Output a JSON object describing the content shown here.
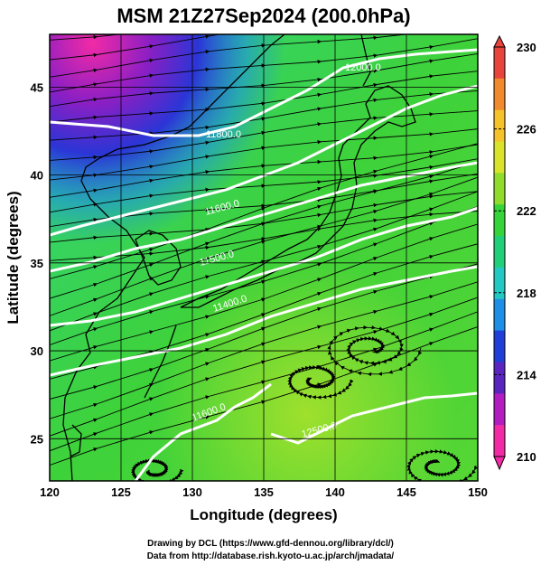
{
  "title": "MSM 21Z27Sep2024 (200.0hPa)",
  "xlabel": "Longitude (degrees)",
  "ylabel": "Latitude  (degrees)",
  "x_ticks": [
    "120",
    "125",
    "130",
    "135",
    "140",
    "145",
    "150"
  ],
  "y_ticks": [
    "25",
    "30",
    "35",
    "40",
    "45"
  ],
  "colorbar": {
    "ticks": [
      "230",
      "226",
      "222",
      "218",
      "214",
      "210"
    ],
    "colors": [
      "#e8443c",
      "#f08a2c",
      "#f6c22a",
      "#d8e32a",
      "#8fdc2c",
      "#35d43a",
      "#1fcf7a",
      "#22c9c2",
      "#1e8fe6",
      "#1f3fd8",
      "#5a24c0",
      "#b21cc0",
      "#f22aa6"
    ]
  },
  "contour_labels": [
    "12000.0",
    "11800.0",
    "11600.0",
    "11500.0",
    "11400.0",
    "11600.0",
    "12500.0",
    "12000.0"
  ],
  "credit_line1": "Drawing by DCL (https://www.gfd-dennou.org/library/dcl/)",
  "credit_line2": "Data from http://database.rish.kyoto-u.ac.jp/arch/jmadata/",
  "colors": {
    "background": "#ffffff",
    "contour": "#ffffff",
    "coast": "#000000",
    "streamline": "#000000"
  }
}
